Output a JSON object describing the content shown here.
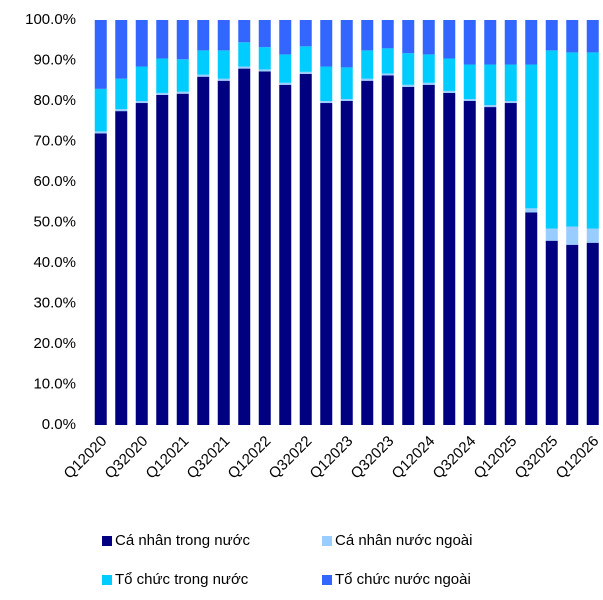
{
  "chart_data": {
    "type": "stacked_bar",
    "categories": [
      "Q12020",
      null,
      "Q32020",
      null,
      "Q12021",
      null,
      "Q32021",
      null,
      "Q12022",
      null,
      "Q32022",
      null,
      "Q12023",
      null,
      "Q32023",
      null,
      "Q12024",
      null,
      "Q32024",
      null,
      "Q12025",
      null,
      "Q32025",
      null,
      "Q12026"
    ],
    "series": [
      {
        "name": "Cá nhân trong nước",
        "color": "#000080",
        "values": [
          72,
          77.5,
          79.5,
          81.5,
          81.8,
          86,
          85,
          88,
          87.3,
          84,
          86.7,
          79.5,
          80,
          85,
          86.3,
          83.5,
          84,
          82,
          80,
          78.5,
          79.5,
          52.5,
          45.5,
          44.5,
          45
        ]
      },
      {
        "name": "Cá nhân nước ngoài",
        "color": "#99ccff",
        "values": [
          0.5,
          0.5,
          0.5,
          0.5,
          0.5,
          0.5,
          0.5,
          0.5,
          0.5,
          0.5,
          0.5,
          0.5,
          0.5,
          0.5,
          0.5,
          0.5,
          0.5,
          0.5,
          0.5,
          0.5,
          0.5,
          1,
          3,
          4.5,
          3.5
        ]
      },
      {
        "name": "Tổ chức trong nước",
        "color": "#00ccff",
        "values": [
          10.5,
          7.5,
          8.5,
          8.5,
          8,
          6,
          7,
          6,
          5.5,
          7,
          6.3,
          8.5,
          7.8,
          7,
          6.2,
          7.8,
          7,
          8,
          8.5,
          10,
          9,
          35.5,
          44,
          43,
          43.5
        ]
      },
      {
        "name": "Tổ chức nước ngoài",
        "color": "#3366ff",
        "values": [
          17,
          14.5,
          11.5,
          9.5,
          9.7,
          7.5,
          7.5,
          5.5,
          6.7,
          8.5,
          6.5,
          11.5,
          11.7,
          7.5,
          7,
          8.2,
          8.5,
          9.5,
          11,
          11,
          11,
          11,
          7.5,
          8,
          8
        ]
      }
    ],
    "ylim": [
      0,
      100
    ],
    "yticks": [
      {
        "value": 0,
        "label": "0.0%"
      },
      {
        "value": 10,
        "label": "10.0%"
      },
      {
        "value": 20,
        "label": "20.0%"
      },
      {
        "value": 30,
        "label": "30.0%"
      },
      {
        "value": 40,
        "label": "40.0%"
      },
      {
        "value": 50,
        "label": "50.0%"
      },
      {
        "value": 60,
        "label": "60.0%"
      },
      {
        "value": 70,
        "label": "70.0%"
      },
      {
        "value": 80,
        "label": "80.0%"
      },
      {
        "value": 90,
        "label": "90.0%"
      },
      {
        "value": 100,
        "label": "100.0%"
      }
    ]
  }
}
